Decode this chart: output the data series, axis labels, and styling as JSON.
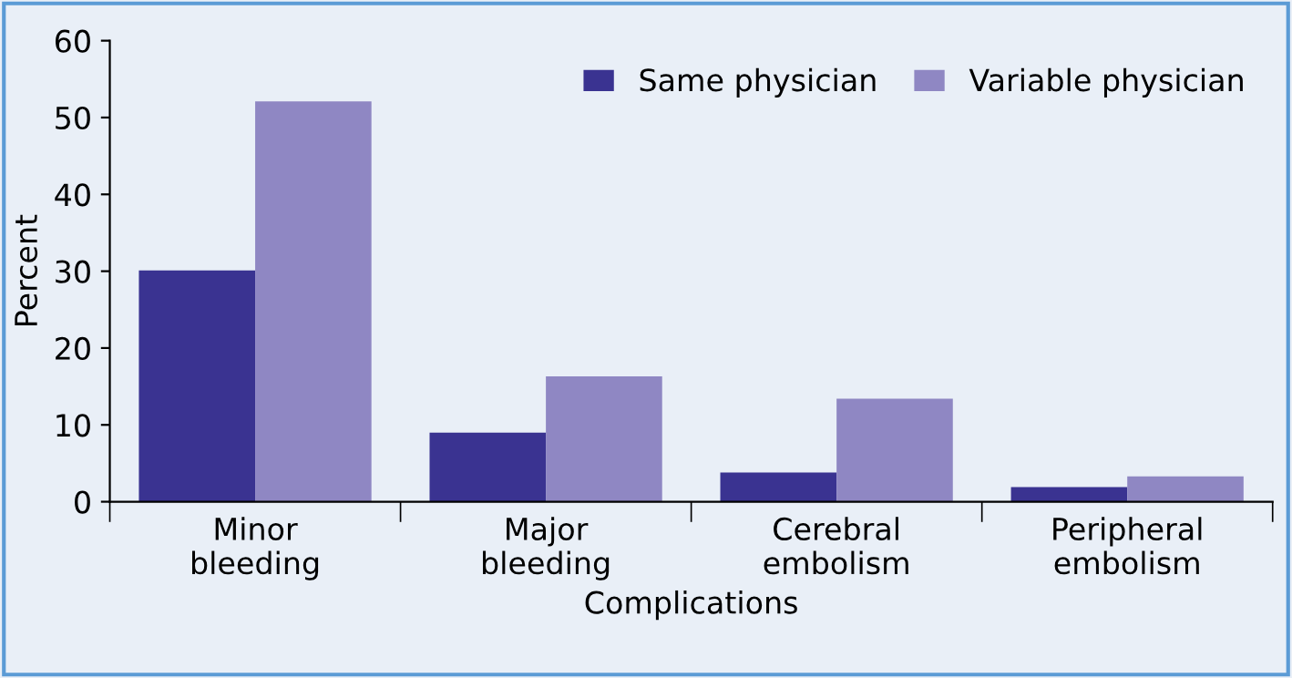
{
  "chart_data": {
    "type": "bar",
    "xlabel": "Complications",
    "ylabel": "Percent",
    "categories": [
      "Minor\nbleeding",
      "Major\nbleeding",
      "Cerebral\nembolism",
      "Peripheral\nembolism"
    ],
    "series": [
      {
        "name": "Same physician",
        "color": "#3a3391",
        "values": [
          30.1,
          9,
          3.8,
          1.9
        ]
      },
      {
        "name": "Variable physician",
        "color": "#8f87c3",
        "values": [
          52.1,
          16.3,
          13.4,
          3.3
        ]
      }
    ],
    "ylim": [
      0,
      60
    ],
    "yticks": [
      0,
      10,
      20,
      30,
      40,
      50,
      60
    ],
    "grid": false,
    "legend": "top right"
  }
}
